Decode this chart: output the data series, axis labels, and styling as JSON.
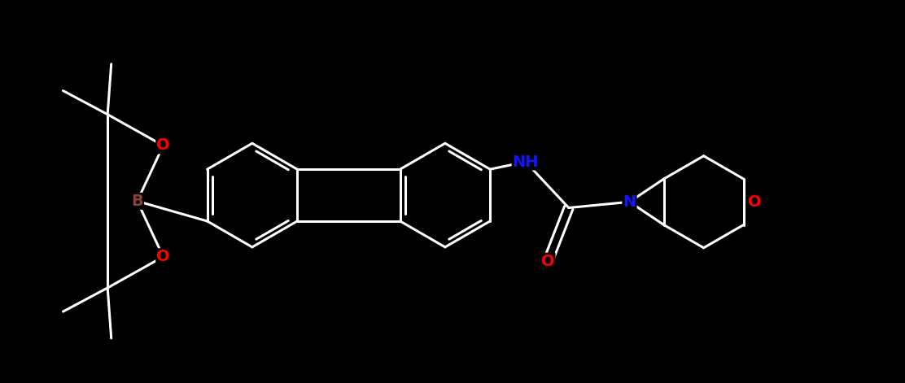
{
  "background_color": "#000000",
  "bond_color": "#ffffff",
  "bond_width": 2.2,
  "font_size_atom": 14,
  "figsize": [
    11.12,
    4.71
  ],
  "dpi": 100,
  "atom_colors": {
    "N": "#1414ff",
    "O": "#ff0000",
    "B": "#8b4040"
  },
  "scale": 1.0
}
